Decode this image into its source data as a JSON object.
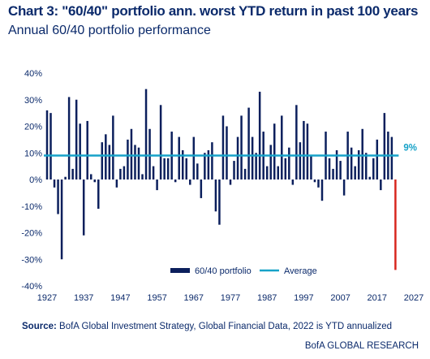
{
  "title": "Chart 3: \"60/40\" portfolio ann. worst YTD return in past 100 years",
  "subtitle": "Annual 60/40 portfolio performance",
  "source_label": "Source:",
  "source_text": " BofA Global Investment Strategy, Global Financial Data, 2022 is YTD annualized",
  "brand": "BofA GLOBAL RESEARCH",
  "colors": {
    "bar": "#0b1f5c",
    "average": "#17a2c8",
    "highlight": "#d7261e",
    "text": "#0b2a6b"
  },
  "chart_data": {
    "type": "bar",
    "title": "",
    "xlabel": "",
    "ylabel": "",
    "ylim": [
      -40,
      40
    ],
    "ytick_labels": [
      "40%",
      "30%",
      "20%",
      "10%",
      "0%",
      "-10%",
      "-20%",
      "-30%",
      "-40%"
    ],
    "ytick_values": [
      40,
      30,
      20,
      10,
      0,
      -10,
      -20,
      -30,
      -40
    ],
    "xlim": [
      1927,
      2027
    ],
    "xtick_labels": [
      "1927",
      "1937",
      "1947",
      "1957",
      "1967",
      "1977",
      "1987",
      "1997",
      "2007",
      "2017",
      "2027"
    ],
    "xtick_values": [
      1927,
      1937,
      1947,
      1957,
      1967,
      1977,
      1987,
      1997,
      2007,
      2017,
      2027
    ],
    "series": [
      {
        "name": "60/40 portfolio",
        "x": [
          1927,
          1928,
          1929,
          1930,
          1931,
          1932,
          1933,
          1934,
          1935,
          1936,
          1937,
          1938,
          1939,
          1940,
          1941,
          1942,
          1943,
          1944,
          1945,
          1946,
          1947,
          1948,
          1949,
          1950,
          1951,
          1952,
          1953,
          1954,
          1955,
          1956,
          1957,
          1958,
          1959,
          1960,
          1961,
          1962,
          1963,
          1964,
          1965,
          1966,
          1967,
          1968,
          1969,
          1970,
          1971,
          1972,
          1973,
          1974,
          1975,
          1976,
          1977,
          1978,
          1979,
          1980,
          1981,
          1982,
          1983,
          1984,
          1985,
          1986,
          1987,
          1988,
          1989,
          1990,
          1991,
          1992,
          1993,
          1994,
          1995,
          1996,
          1997,
          1998,
          1999,
          2000,
          2001,
          2002,
          2003,
          2004,
          2005,
          2006,
          2007,
          2008,
          2009,
          2010,
          2011,
          2012,
          2013,
          2014,
          2015,
          2016,
          2017,
          2018,
          2019,
          2020,
          2021,
          2022
        ],
        "values": [
          26,
          25,
          -3,
          -13,
          -30,
          1,
          31,
          4,
          30,
          21,
          -21,
          22,
          2,
          -1,
          -11,
          14,
          17,
          13,
          24,
          -3,
          4,
          5,
          15,
          19,
          13,
          12,
          2,
          34,
          19,
          5,
          -4,
          28,
          8,
          8,
          18,
          -1,
          16,
          11,
          8,
          -2,
          16,
          6,
          -7,
          10,
          11,
          14,
          -12,
          -17,
          24,
          20,
          -2,
          7,
          16,
          24,
          4,
          27,
          16,
          10,
          33,
          18,
          5,
          13,
          21,
          5,
          24,
          8,
          12,
          -2,
          28,
          14,
          22,
          21,
          9,
          -1,
          -3,
          -8,
          18,
          8,
          4,
          11,
          7,
          -6,
          18,
          12,
          5,
          11,
          19,
          10,
          1,
          8,
          15,
          -4,
          25,
          18,
          16,
          -34
        ]
      },
      {
        "name": "Average",
        "value": 9
      }
    ],
    "average_label": "9%",
    "highlight_year": 2022,
    "legend": {
      "placement": "bottom-center",
      "entries": [
        "60/40 portfolio",
        "Average"
      ]
    },
    "grid": false
  }
}
